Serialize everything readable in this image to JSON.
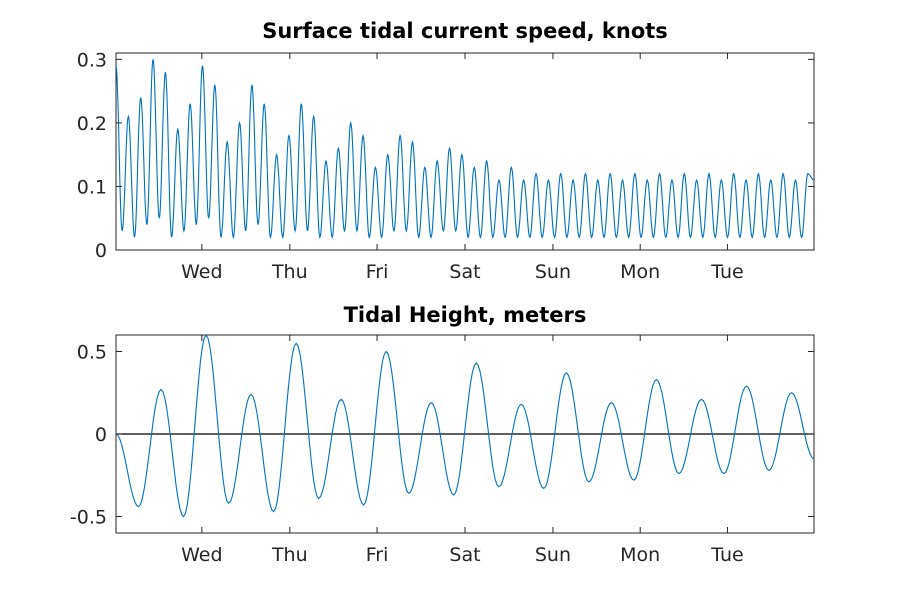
{
  "chart_data": [
    {
      "type": "line",
      "title": "Surface tidal current speed, knots",
      "xlabel": "",
      "ylabel": "",
      "x_tick_labels": [
        "Wed",
        "Thu",
        "Fri",
        "Sat",
        "Sun",
        "Mon",
        "Tue"
      ],
      "ylim": [
        0,
        0.31
      ],
      "y_ticks": [
        0,
        0.1,
        0.2,
        0.3
      ],
      "y_tick_labels": [
        "0",
        "0.1",
        "0.2",
        "0.3"
      ],
      "grid": false,
      "color": "#0072BD",
      "series": [
        {
          "x": [
            0.0,
            0.3,
            0.55,
            0.9,
            1.1,
            1.3,
            1.6,
            1.75,
            1.95,
            2.1,
            2.4,
            2.65,
            2.85,
            3.1,
            3.35,
            3.6,
            3.85,
            4.1,
            4.35,
            4.6,
            4.85,
            5.1,
            5.35,
            5.6,
            5.85,
            6.1,
            6.35,
            6.6,
            6.85,
            7.1,
            7.35,
            7.6,
            7.85,
            8.1,
            8.35,
            8.6,
            8.85,
            9.1,
            9.35,
            9.6,
            9.85,
            10.1,
            10.35,
            10.6,
            10.85,
            11.1,
            11.35,
            11.6,
            11.85,
            12.1,
            12.35,
            12.6,
            12.85,
            13.1,
            13.35,
            13.6,
            13.85,
            14.1,
            14.35,
            14.6,
            14.85,
            15.1,
            15.35,
            15.6,
            15.85,
            16.1,
            16.35,
            16.6,
            16.85,
            17.1,
            17.35,
            17.6,
            17.85,
            18.1,
            18.35,
            18.6,
            18.85,
            19.1,
            19.35,
            19.6,
            19.85,
            20.1,
            20.35,
            20.6,
            20.85,
            21.1,
            21.35,
            21.6,
            21.85,
            22.1,
            22.35,
            22.6,
            22.85,
            23.1,
            23.35,
            23.6,
            23.85,
            24.1,
            24.35,
            24.6,
            24.85,
            25.1,
            25.35,
            25.6,
            25.85,
            26.1,
            26.35,
            26.6,
            26.85,
            27.1,
            27.35,
            27.6,
            27.85,
            28.1
          ],
          "name": "",
          "values": [
            0.29,
            0.03,
            0.21,
            0.02,
            0.24,
            0.04,
            0.3,
            0.05,
            0.28,
            0.02,
            0.19,
            0.03,
            0.23,
            0.04,
            0.29,
            0.05,
            0.26,
            0.02,
            0.17,
            0.02,
            0.2,
            0.03,
            0.26,
            0.04,
            0.23,
            0.02,
            0.15,
            0.02,
            0.18,
            0.03,
            0.23,
            0.03,
            0.21,
            0.02,
            0.14,
            0.02,
            0.16,
            0.03,
            0.2,
            0.03,
            0.18,
            0.02,
            0.13,
            0.02,
            0.15,
            0.03,
            0.18,
            0.03,
            0.17,
            0.02,
            0.13,
            0.02,
            0.14,
            0.03,
            0.16,
            0.03,
            0.15,
            0.02,
            0.13,
            0.02,
            0.14,
            0.02,
            0.11,
            0.02,
            0.13,
            0.02,
            0.11,
            0.02,
            0.12,
            0.02,
            0.11,
            0.02,
            0.12,
            0.02,
            0.11,
            0.02,
            0.12,
            0.02,
            0.11,
            0.02,
            0.12,
            0.02,
            0.11,
            0.02,
            0.12,
            0.02,
            0.11,
            0.02,
            0.12,
            0.02,
            0.11,
            0.02,
            0.12,
            0.02,
            0.11,
            0.02,
            0.12,
            0.02,
            0.11,
            0.02,
            0.12,
            0.02,
            0.11,
            0.02,
            0.12,
            0.02,
            0.11,
            0.02,
            0.12,
            0.02,
            0.11,
            0.02,
            0.12,
            0.11
          ]
        }
      ]
    },
    {
      "type": "line",
      "title": "Tidal Height, meters",
      "xlabel": "",
      "ylabel": "",
      "x_tick_labels": [
        "Wed",
        "Thu",
        "Fri",
        "Sat",
        "Sun",
        "Mon",
        "Tue"
      ],
      "ylim": [
        -0.6,
        0.6
      ],
      "y_ticks": [
        -0.5,
        0,
        0.5
      ],
      "y_tick_labels": [
        "-0.5",
        "0",
        "0.5"
      ],
      "grid": false,
      "zero_line": true,
      "color": "#0072BD",
      "series": [
        {
          "name": "",
          "values": [
            0.0,
            -0.44,
            0.27,
            -0.5,
            0.6,
            -0.42,
            0.24,
            -0.47,
            0.55,
            -0.39,
            0.21,
            -0.43,
            0.5,
            -0.36,
            0.19,
            -0.37,
            0.43,
            -0.32,
            0.18,
            -0.33,
            0.37,
            -0.29,
            0.19,
            -0.28,
            0.33,
            -0.24,
            0.21,
            -0.24,
            0.29,
            -0.22,
            0.25,
            -0.15
          ]
        }
      ]
    }
  ]
}
